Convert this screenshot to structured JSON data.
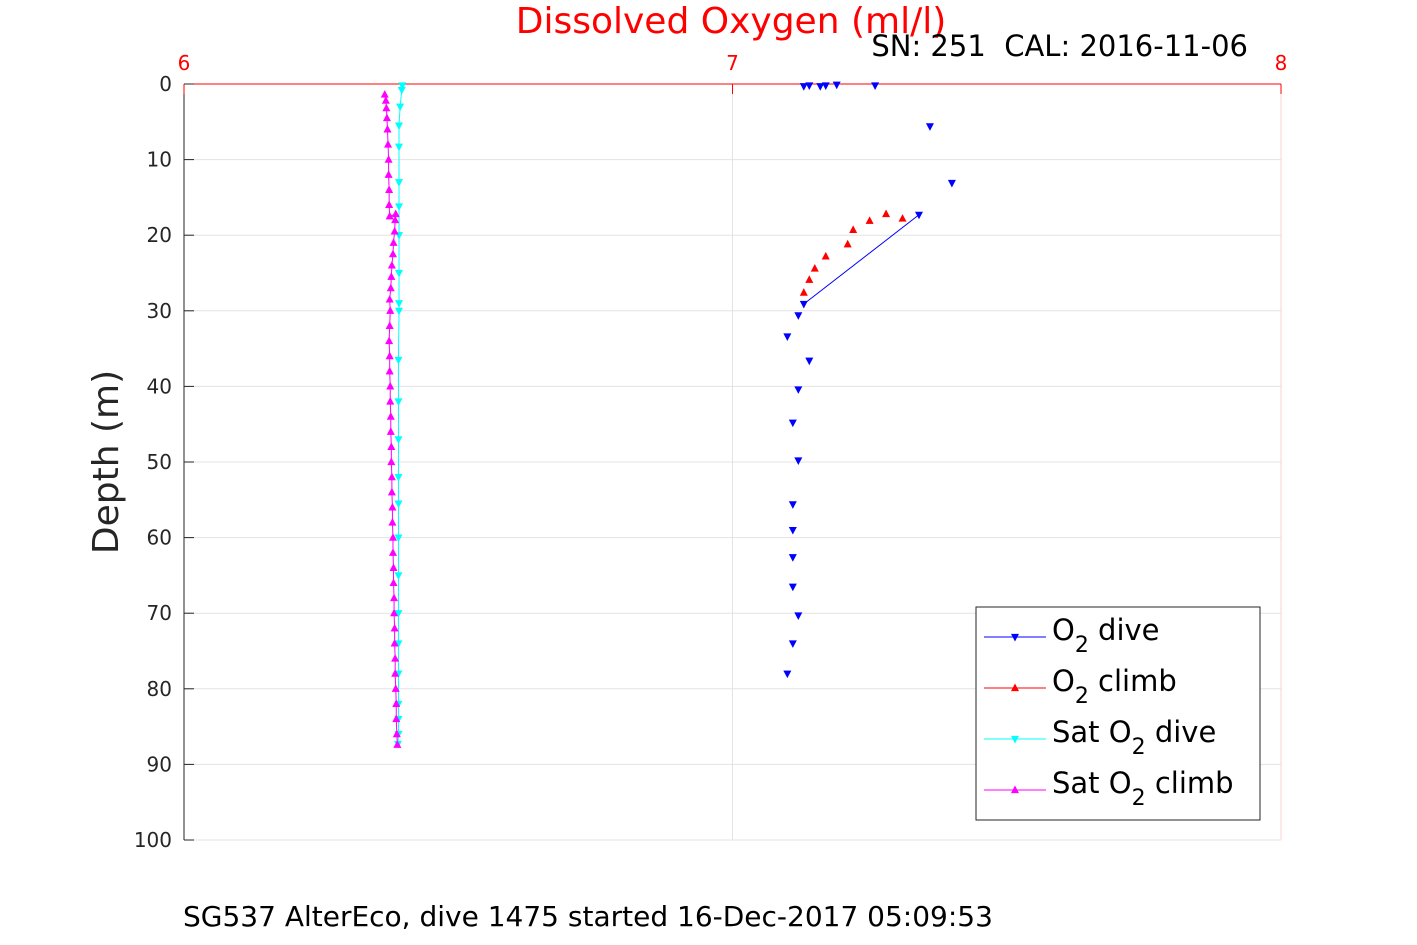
{
  "chart_data": {
    "type": "scatter",
    "title": "Dissolved Oxygen (ml/l)",
    "subtitle": "SN: 251  CAL: 2016-11-06",
    "caption": "SG537 AlterEco, dive 1475 started 16-Dec-2017 05:09:53",
    "xlabel": "",
    "ylabel": "Depth (m)",
    "xlim": [
      6,
      8
    ],
    "ylim": [
      0,
      100
    ],
    "y_reversed": true,
    "x_axis_position": "top",
    "x_ticks": [
      6,
      7,
      8
    ],
    "y_ticks": [
      0,
      10,
      20,
      30,
      40,
      50,
      60,
      70,
      80,
      90,
      100
    ],
    "x_tick_labels": [
      "6",
      "7",
      "8"
    ],
    "y_tick_labels": [
      "0",
      "10",
      "20",
      "30",
      "40",
      "50",
      "60",
      "70",
      "80",
      "90",
      "100"
    ],
    "x_axis_color": "#ff0000",
    "grid": true,
    "legend_position": "bottom-right",
    "legend": [
      {
        "base": "O",
        "sub": "2",
        "rest": " dive"
      },
      {
        "base": "O",
        "sub": "2",
        "rest": " climb"
      },
      {
        "base": "Sat O",
        "sub": "2",
        "rest": " dive"
      },
      {
        "base": "Sat O",
        "sub": "2",
        "rest": " climb"
      }
    ],
    "series": [
      {
        "key": "o2_dive",
        "color": "#0000ff",
        "marker": "triangle-down",
        "line": "gap",
        "points": [
          [
            7.13,
            0.3
          ],
          [
            7.14,
            0.2
          ],
          [
            7.16,
            0.3
          ],
          [
            7.17,
            0.2
          ],
          [
            7.19,
            0.1
          ],
          [
            7.26,
            0.2
          ],
          [
            7.36,
            5.6
          ],
          [
            7.4,
            13.1
          ],
          [
            7.34,
            17.3
          ],
          [
            7.13,
            29.1
          ],
          [
            7.12,
            30.6
          ],
          [
            7.1,
            33.4
          ],
          [
            7.14,
            36.6
          ],
          [
            7.12,
            40.4
          ],
          [
            7.11,
            44.8
          ],
          [
            7.12,
            49.8
          ],
          [
            7.11,
            55.6
          ],
          [
            7.11,
            59.0
          ],
          [
            7.11,
            62.6
          ],
          [
            7.11,
            66.5
          ],
          [
            7.12,
            70.3
          ],
          [
            7.11,
            74.0
          ],
          [
            7.1,
            78.0
          ]
        ],
        "connected_segment": [
          [
            7.34,
            17.3
          ],
          [
            7.13,
            29.1
          ]
        ]
      },
      {
        "key": "o2_climb",
        "color": "#ff0000",
        "marker": "triangle-up",
        "line": "none",
        "points": [
          [
            7.13,
            27.6
          ],
          [
            7.14,
            25.9
          ],
          [
            7.15,
            24.4
          ],
          [
            7.17,
            22.8
          ],
          [
            7.21,
            21.2
          ],
          [
            7.22,
            19.3
          ],
          [
            7.25,
            18.1
          ],
          [
            7.28,
            17.2
          ],
          [
            7.31,
            17.8
          ]
        ]
      },
      {
        "key": "sat_o2_dive",
        "color": "#00ffff",
        "marker": "triangle-down",
        "line": "solid",
        "points": [
          [
            6.398,
            0.2
          ],
          [
            6.397,
            0.8
          ],
          [
            6.394,
            3.0
          ],
          [
            6.392,
            5.5
          ],
          [
            6.392,
            8.3
          ],
          [
            6.392,
            13.0
          ],
          [
            6.392,
            16.2
          ],
          [
            6.392,
            20.0
          ],
          [
            6.392,
            25.0
          ],
          [
            6.392,
            29.0
          ],
          [
            6.392,
            30.0
          ],
          [
            6.391,
            36.5
          ],
          [
            6.391,
            42.0
          ],
          [
            6.391,
            47.0
          ],
          [
            6.391,
            52.0
          ],
          [
            6.391,
            55.5
          ],
          [
            6.391,
            60.0
          ],
          [
            6.391,
            65.0
          ],
          [
            6.391,
            70.0
          ],
          [
            6.391,
            74.0
          ],
          [
            6.391,
            78.0
          ],
          [
            6.391,
            82.0
          ],
          [
            6.391,
            84.0
          ],
          [
            6.391,
            86.0
          ],
          [
            6.39,
            87.3
          ]
        ]
      },
      {
        "key": "sat_o2_climb",
        "color": "#ff00ff",
        "marker": "triangle-up",
        "line": "solid",
        "points": [
          [
            6.389,
            87.4
          ],
          [
            6.388,
            86.0
          ],
          [
            6.387,
            84.0
          ],
          [
            6.387,
            82.0
          ],
          [
            6.386,
            80.0
          ],
          [
            6.385,
            78.0
          ],
          [
            6.385,
            76.0
          ],
          [
            6.384,
            74.0
          ],
          [
            6.384,
            72.0
          ],
          [
            6.383,
            70.0
          ],
          [
            6.383,
            68.0
          ],
          [
            6.382,
            66.0
          ],
          [
            6.382,
            64.0
          ],
          [
            6.381,
            62.0
          ],
          [
            6.381,
            60.0
          ],
          [
            6.38,
            58.0
          ],
          [
            6.38,
            56.0
          ],
          [
            6.379,
            54.0
          ],
          [
            6.379,
            52.0
          ],
          [
            6.378,
            50.0
          ],
          [
            6.378,
            48.0
          ],
          [
            6.377,
            46.0
          ],
          [
            6.377,
            44.0
          ],
          [
            6.376,
            42.0
          ],
          [
            6.376,
            40.0
          ],
          [
            6.375,
            38.0
          ],
          [
            6.375,
            36.0
          ],
          [
            6.374,
            34.0
          ],
          [
            6.375,
            32.0
          ],
          [
            6.376,
            30.0
          ],
          [
            6.375,
            28.5
          ],
          [
            6.377,
            27.0
          ],
          [
            6.378,
            25.5
          ],
          [
            6.379,
            24.0
          ],
          [
            6.381,
            22.5
          ],
          [
            6.382,
            21.0
          ],
          [
            6.384,
            19.5
          ],
          [
            6.385,
            18.0
          ],
          [
            6.386,
            17.2
          ],
          [
            6.375,
            17.5
          ],
          [
            6.374,
            16.0
          ],
          [
            6.374,
            14.0
          ],
          [
            6.373,
            12.0
          ],
          [
            6.373,
            10.0
          ],
          [
            6.372,
            8.0
          ],
          [
            6.371,
            6.0
          ],
          [
            6.37,
            4.5
          ],
          [
            6.369,
            3.2
          ],
          [
            6.368,
            2.2
          ],
          [
            6.366,
            1.4
          ]
        ]
      }
    ]
  }
}
